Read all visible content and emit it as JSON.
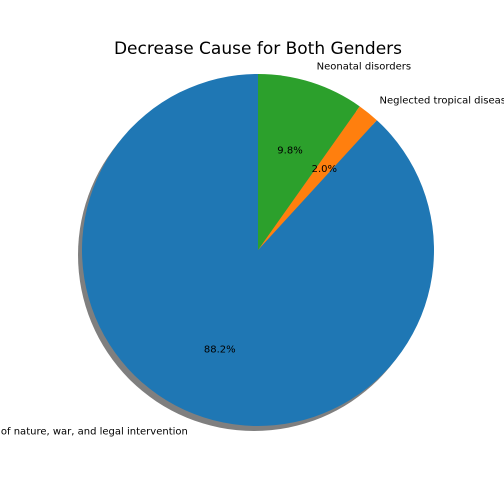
{
  "chart_data": {
    "type": "pie",
    "title": "Decrease Cause for Both Genders",
    "start_angle_deg": 90,
    "direction": "counterclockwise",
    "shadow": true,
    "slices": [
      {
        "label": "Exposure to forces of nature, war, and legal intervention",
        "visible_label": "of nature, war, and legal intervention",
        "value": 88.2,
        "pct_label": "88.2%",
        "color": "#1f77b4"
      },
      {
        "label": "Neglected tropical diseases",
        "visible_label": "Neglected tropical diseas",
        "value": 2.0,
        "pct_label": "2.0%",
        "color": "#ff7f0e"
      },
      {
        "label": "Neonatal disorders",
        "visible_label": "Neonatal disorders",
        "value": 9.8,
        "pct_label": "9.8%",
        "color": "#2ca02c"
      }
    ]
  }
}
